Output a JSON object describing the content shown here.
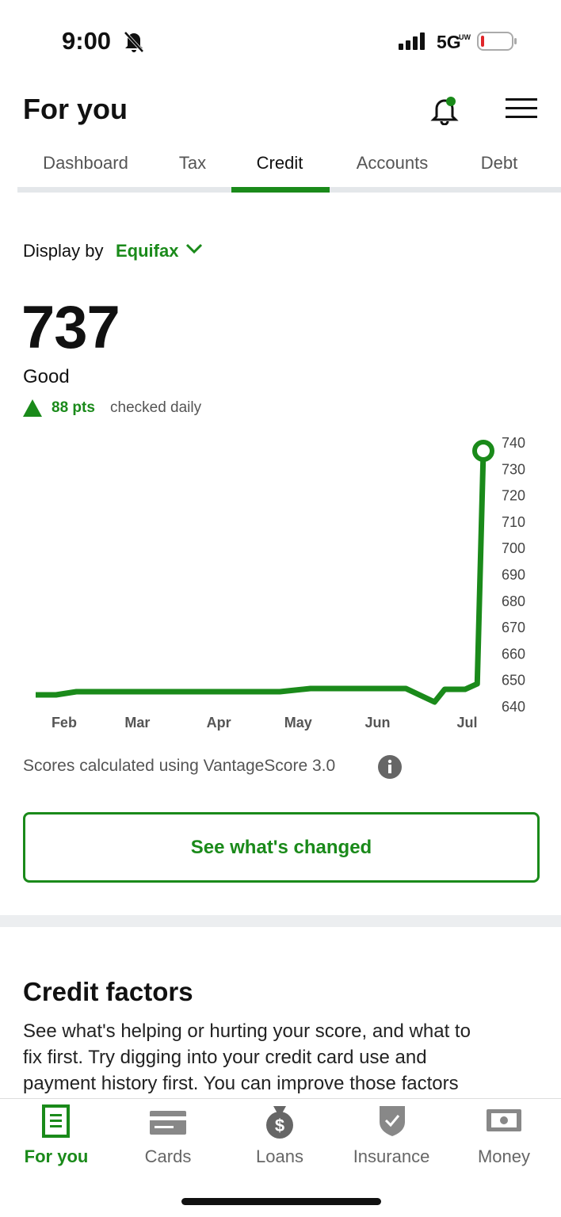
{
  "status_bar": {
    "time": "9:00",
    "network": "5G",
    "network_sub": "UW"
  },
  "header": {
    "title": "For you"
  },
  "tabs": [
    "Dashboard",
    "Tax",
    "Credit",
    "Accounts",
    "Debt"
  ],
  "active_tab": 2,
  "display_by": {
    "label": "Display by",
    "bureau": "Equifax"
  },
  "score": {
    "value": "737",
    "rating": "Good",
    "change": "88 pts",
    "frequency": "checked daily"
  },
  "chart": {
    "type": "line",
    "color": "#1a8a1a",
    "x": [
      0,
      1,
      2,
      12,
      13.5,
      18.2,
      19.6,
      20.1,
      21.1,
      21.7,
      22
    ],
    "values": [
      644.5,
      644.5,
      645.7,
      645.7,
      646.9,
      646.9,
      641.8,
      646.6,
      646.6,
      648.7,
      737
    ],
    "xlim": [
      0,
      22
    ],
    "xticks": [
      {
        "value": 1.4,
        "label": "Feb"
      },
      {
        "value": 5,
        "label": "Mar"
      },
      {
        "value": 9,
        "label": "Apr"
      },
      {
        "value": 12.9,
        "label": "May"
      },
      {
        "value": 16.8,
        "label": "Jun"
      },
      {
        "value": 21.2,
        "label": "Jul"
      }
    ],
    "ylim": [
      640,
      740
    ],
    "yticks": [
      640,
      650,
      660,
      670,
      680,
      690,
      700,
      710,
      720,
      730,
      740
    ]
  },
  "footnote": "Scores calculated using VantageScore 3.0",
  "button": "See what's changed",
  "credit_factors": {
    "title": "Credit factors",
    "lines": [
      "See what's helping or hurting your score, and what to",
      "fix first. Try digging into your credit card use and",
      "payment history first. You can improve those factors"
    ]
  },
  "nav": [
    "For you",
    "Cards",
    "Loans",
    "Insurance",
    "Money"
  ]
}
